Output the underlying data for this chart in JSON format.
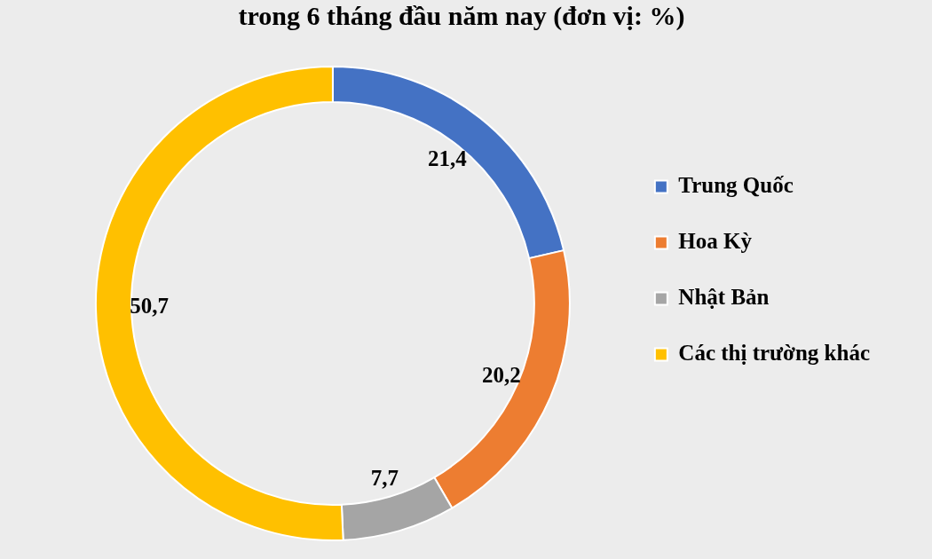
{
  "chart_data": {
    "type": "donut",
    "title": "trong 6 tháng đầu năm nay (đơn vị: %)",
    "categories": [
      "Trung Quốc",
      "Hoa Kỳ",
      "Nhật Bản",
      "Các thị trường khác"
    ],
    "values": [
      21.4,
      20.2,
      7.7,
      50.7
    ],
    "value_labels": [
      "21,4",
      "20,2",
      "7,7",
      "50,7"
    ],
    "colors": [
      "#4472c4",
      "#ed7d31",
      "#a5a5a5",
      "#ffc000"
    ],
    "legend": "right"
  }
}
